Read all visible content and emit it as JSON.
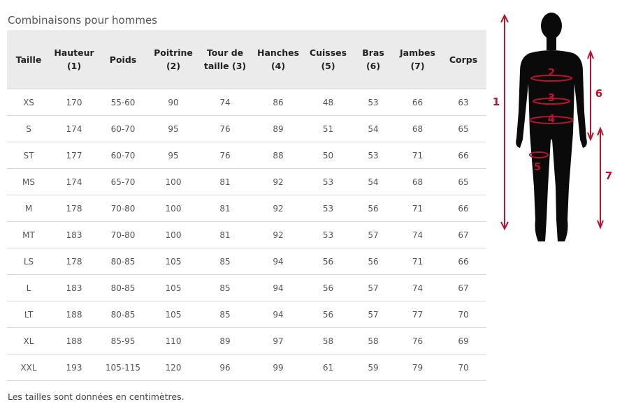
{
  "title": "Combinaisons pour hommes",
  "table": {
    "headers": [
      "Taille",
      "Hauteur\n(1)",
      "Poids",
      "Poitrine\n(2)",
      "Tour de\ntaille (3)",
      "Hanches\n(4)",
      "Cuisses\n(5)",
      "Bras\n(6)",
      "Jambes\n(7)",
      "Corps"
    ],
    "rows": [
      [
        "XS",
        "170",
        "55-60",
        "90",
        "74",
        "86",
        "48",
        "53",
        "66",
        "63"
      ],
      [
        "S",
        "174",
        "60-70",
        "95",
        "76",
        "89",
        "51",
        "54",
        "68",
        "65"
      ],
      [
        "ST",
        "177",
        "60-70",
        "95",
        "76",
        "88",
        "50",
        "53",
        "71",
        "66"
      ],
      [
        "MS",
        "174",
        "65-70",
        "100",
        "81",
        "92",
        "53",
        "54",
        "68",
        "65"
      ],
      [
        "M",
        "178",
        "70-80",
        "100",
        "81",
        "92",
        "53",
        "56",
        "71",
        "66"
      ],
      [
        "MT",
        "183",
        "70-80",
        "100",
        "81",
        "92",
        "53",
        "57",
        "74",
        "67"
      ],
      [
        "LS",
        "178",
        "80-85",
        "105",
        "85",
        "94",
        "56",
        "56",
        "71",
        "66"
      ],
      [
        "L",
        "183",
        "80-85",
        "105",
        "85",
        "94",
        "56",
        "57",
        "74",
        "67"
      ],
      [
        "LT",
        "188",
        "80-85",
        "105",
        "85",
        "94",
        "56",
        "57",
        "77",
        "70"
      ],
      [
        "XL",
        "188",
        "85-95",
        "110",
        "89",
        "97",
        "58",
        "58",
        "76",
        "69"
      ],
      [
        "XXL",
        "193",
        "105-115",
        "120",
        "96",
        "99",
        "61",
        "59",
        "79",
        "70"
      ]
    ]
  },
  "note": "Les tailles sont données en centimètres.",
  "figure": {
    "labels": [
      "1",
      "2",
      "3",
      "4",
      "5",
      "6",
      "7"
    ],
    "accent_color": "#b5152d"
  }
}
